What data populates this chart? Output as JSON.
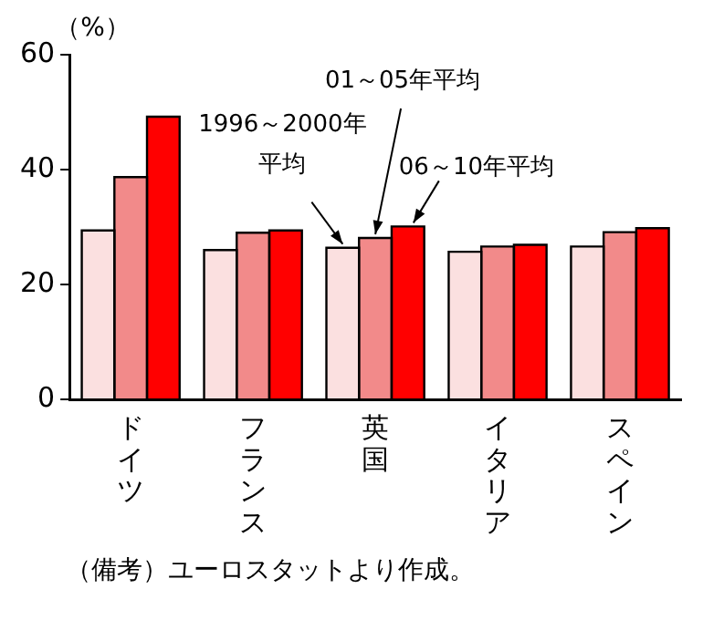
{
  "chart_data": {
    "type": "bar",
    "ylabel": "（%）",
    "categories": [
      "ドイツ",
      "フランス",
      "英国",
      "イタリア",
      "スペイン"
    ],
    "series": [
      {
        "name": "1996～2000年平均",
        "color": "#fbe0e0",
        "values": [
          29.4,
          26.0,
          26.4,
          25.7,
          26.6
        ]
      },
      {
        "name": "01～05年平均",
        "color": "#f28a8a",
        "values": [
          38.7,
          29.0,
          28.1,
          26.6,
          29.1
        ]
      },
      {
        "name": "06～10年平均",
        "color": "#ff0000",
        "values": [
          49.2,
          29.4,
          30.1,
          26.9,
          29.8
        ]
      }
    ],
    "ylim": [
      0,
      60
    ],
    "yticks": [
      0,
      20,
      40,
      60
    ],
    "grid": false,
    "legend": false,
    "annotations": [
      "（備考）ユーロスタットより作成。"
    ]
  }
}
